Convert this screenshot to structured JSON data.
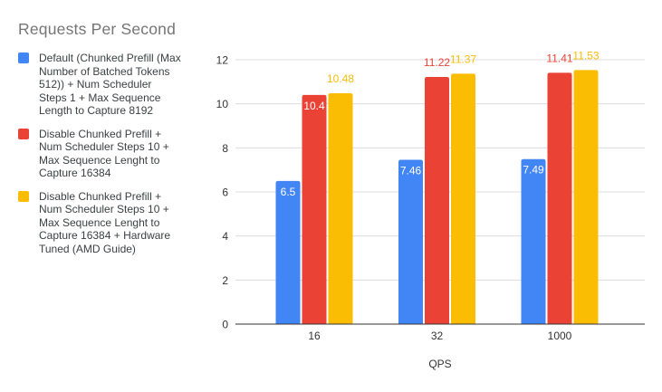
{
  "style": {
    "background": "#FFFFFF",
    "title_color": "#757575",
    "legend_text_color": "#3C4043",
    "axis_text_color": "#333333",
    "grid_color": "#DADCE0",
    "axis_line_color": "#333333",
    "inside_label_color": "#FFFFFF"
  },
  "chart_data": {
    "type": "bar",
    "title": "Requests Per Second",
    "xlabel": "QPS",
    "ylabel": "",
    "ylim": [
      0,
      12
    ],
    "yticks": [
      0,
      2,
      4,
      6,
      8,
      10,
      12
    ],
    "grid": true,
    "legend_position": "left",
    "categories": [
      "16",
      "32",
      "1000"
    ],
    "series": [
      {
        "name": "Default (Chunked Prefill (Max Number of Batched Tokens 512)) + Num Scheduler Steps 1 + Max Sequence Length to Capture 8192",
        "legend_lines": [
          "Default (Chunked Prefill (Max",
          "Number of Batched Tokens",
          "512)) + Num Scheduler",
          "Steps 1 + Max Sequence",
          "Length to Capture 8192"
        ],
        "color": "#4285F4",
        "values": [
          6.5,
          7.46,
          7.49
        ],
        "value_labels": [
          "6.5",
          "7.46",
          "7.49"
        ],
        "label_placement": [
          "inside",
          "inside",
          "inside"
        ]
      },
      {
        "name": "Disable Chunked Prefill + Num Scheduler Steps 10 + Max Sequence Lenght to Capture 16384",
        "legend_lines": [
          "Disable Chunked Prefill +",
          "Num Scheduler Steps 10 +",
          "Max Sequence Lenght to",
          "Capture 16384"
        ],
        "color": "#EA4335",
        "values": [
          10.4,
          11.22,
          11.41
        ],
        "value_labels": [
          "10.4",
          "11.22",
          "11.41"
        ],
        "label_placement": [
          "inside",
          "above",
          "above"
        ]
      },
      {
        "name": "Disable Chunked Prefill + Num Scheduler Steps 10 + Max Sequence Lenght to Capture 16384 + Hardware Tuned (AMD Guide)",
        "legend_lines": [
          "Disable Chunked Prefill +",
          "Num Scheduler Steps 10 +",
          "Max Sequence Lenght to",
          "Capture 16384 + Hardware",
          "Tuned (AMD Guide)"
        ],
        "color": "#FBBC04",
        "values": [
          10.48,
          11.37,
          11.53
        ],
        "value_labels": [
          "10.48",
          "11.37",
          "11.53"
        ],
        "label_placement": [
          "above",
          "above",
          "above"
        ]
      }
    ]
  }
}
